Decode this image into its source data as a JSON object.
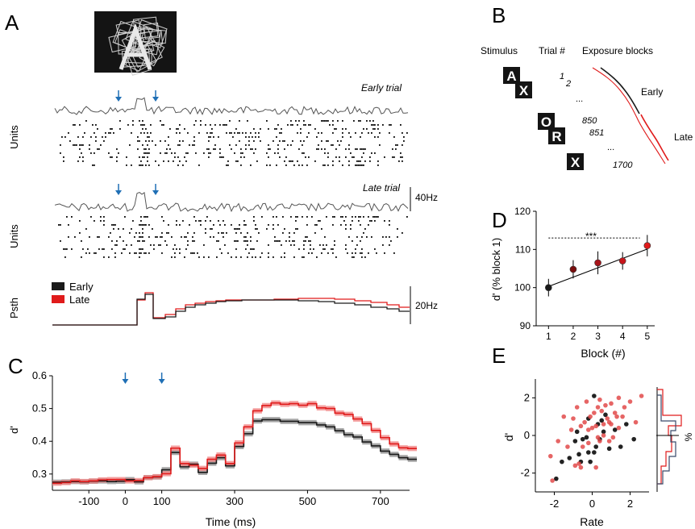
{
  "panels": {
    "a": "A",
    "b": "B",
    "c": "C",
    "d": "D",
    "e": "E"
  },
  "panelA": {
    "early_label": "Early trial",
    "late_label": "Late trial",
    "units_label": "Units",
    "psth_label": "Psth",
    "scale_40": "40Hz",
    "scale_20": "20Hz",
    "legend": [
      {
        "name": "Early",
        "color": "#1a1a1a"
      },
      {
        "name": "Late",
        "color": "#e01b1b"
      }
    ]
  },
  "panelB": {
    "headers": [
      "Stimulus",
      "Trial #",
      "Exposure blocks"
    ],
    "letters": [
      "A",
      "X",
      "O",
      "R",
      "X"
    ],
    "trials": [
      "1",
      "2",
      "...",
      "850",
      "851",
      "...",
      "1700"
    ],
    "early": "Early",
    "late": "Late"
  },
  "colors": {
    "early": "#1a1a1a",
    "late": "#e01b1b",
    "late_band": "#f08080",
    "arrow": "#1f6fb5"
  },
  "chart_data": [
    {
      "id": "C",
      "type": "line",
      "xlabel": "Time (ms)",
      "ylabel": "d'",
      "xlim": [
        -200,
        780
      ],
      "ylim": [
        0.27,
        0.6
      ],
      "xticks": [
        -100,
        0,
        100,
        300,
        500,
        700
      ],
      "yticks": [
        0.3,
        0.4,
        0.5,
        0.6
      ],
      "stimulus_markers_ms": [
        0,
        100
      ],
      "series": [
        {
          "name": "Early",
          "x": [
            -200,
            -175,
            -150,
            -125,
            -100,
            -75,
            -50,
            -25,
            0,
            25,
            50,
            75,
            100,
            125,
            150,
            175,
            200,
            225,
            250,
            275,
            300,
            325,
            350,
            375,
            400,
            425,
            450,
            475,
            500,
            525,
            550,
            575,
            600,
            625,
            650,
            675,
            700,
            725,
            750,
            775
          ],
          "y": [
            0.275,
            0.276,
            0.277,
            0.276,
            0.278,
            0.279,
            0.277,
            0.278,
            0.283,
            0.276,
            0.289,
            0.291,
            0.313,
            0.366,
            0.322,
            0.33,
            0.305,
            0.333,
            0.35,
            0.325,
            0.384,
            0.423,
            0.462,
            0.466,
            0.466,
            0.461,
            0.461,
            0.457,
            0.457,
            0.45,
            0.444,
            0.432,
            0.42,
            0.413,
            0.398,
            0.386,
            0.37,
            0.36,
            0.35,
            0.345
          ]
        },
        {
          "name": "Late",
          "x": [
            -200,
            -175,
            -150,
            -125,
            -100,
            -75,
            -50,
            -25,
            0,
            25,
            50,
            75,
            100,
            125,
            150,
            175,
            200,
            225,
            250,
            275,
            300,
            325,
            350,
            375,
            400,
            425,
            450,
            475,
            500,
            525,
            550,
            575,
            600,
            625,
            650,
            675,
            700,
            725,
            750,
            775
          ],
          "y": [
            0.272,
            0.274,
            0.279,
            0.277,
            0.279,
            0.282,
            0.283,
            0.283,
            0.279,
            0.28,
            0.289,
            0.292,
            0.301,
            0.379,
            0.332,
            0.327,
            0.317,
            0.345,
            0.358,
            0.332,
            0.395,
            0.444,
            0.493,
            0.509,
            0.517,
            0.513,
            0.515,
            0.51,
            0.515,
            0.502,
            0.5,
            0.486,
            0.482,
            0.468,
            0.454,
            0.433,
            0.411,
            0.392,
            0.38,
            0.378
          ]
        }
      ]
    },
    {
      "id": "D",
      "type": "scatter",
      "xlabel": "Block (#)",
      "ylabel": "d' (% block 1)",
      "xlim": [
        0.5,
        5.3
      ],
      "ylim": [
        90,
        120
      ],
      "xticks": [
        1,
        2,
        3,
        4,
        5
      ],
      "yticks": [
        90,
        100,
        110,
        120
      ],
      "significance": "***",
      "x": [
        1,
        2,
        3,
        4,
        5
      ],
      "y": [
        100,
        104.8,
        106.5,
        107,
        111
      ],
      "err": [
        2.3,
        2.4,
        3,
        2.3,
        2.8
      ],
      "colors": [
        "#1a1a1a",
        "#7a0d0d",
        "#a8141a",
        "#c8161b",
        "#e01b1b"
      ]
    },
    {
      "id": "E",
      "type": "scatter",
      "xlabel": "Rate",
      "ylabel": "d'",
      "xlim": [
        -3,
        3
      ],
      "ylim": [
        -3,
        3
      ],
      "xticks": [
        -2,
        0,
        2
      ],
      "yticks": [
        -2,
        0,
        2
      ],
      "side_label": "%",
      "series": [
        {
          "name": "Early",
          "points": [
            [
              -0.6,
              -1.4
            ],
            [
              -1.2,
              -1.2
            ],
            [
              -0.9,
              -0.3
            ],
            [
              0.1,
              -0.9
            ],
            [
              0.4,
              -0.2
            ],
            [
              -0.2,
              0.9
            ],
            [
              0.9,
              -0.7
            ],
            [
              1.2,
              0.3
            ],
            [
              -1.6,
              -1.4
            ],
            [
              -0.5,
              -0.2
            ],
            [
              0.3,
              0.6
            ],
            [
              0.2,
              -0.6
            ],
            [
              -0.2,
              -0.9
            ],
            [
              -1.9,
              -2.3
            ],
            [
              1.8,
              0.6
            ],
            [
              0.7,
              1.1
            ],
            [
              -0.3,
              -0.1
            ],
            [
              -0.8,
              0.2
            ],
            [
              2.2,
              -0.2
            ],
            [
              0.6,
              0.2
            ],
            [
              -0.1,
              -1.4
            ],
            [
              1.5,
              -0.6
            ],
            [
              0.1,
              2.1
            ],
            [
              -0.7,
              -1.0
            ],
            [
              0.5,
              0.8
            ]
          ]
        },
        {
          "name": "Late",
          "points": [
            [
              -2.2,
              -1.1
            ],
            [
              -0.8,
              1.5
            ],
            [
              0.1,
              1.2
            ],
            [
              0.7,
              1.6
            ],
            [
              1.2,
              1.2
            ],
            [
              1.4,
              0.4
            ],
            [
              -1.0,
              0.9
            ],
            [
              -0.2,
              0.3
            ],
            [
              0.3,
              -0.1
            ],
            [
              0.9,
              -0.3
            ],
            [
              -0.6,
              -1.7
            ],
            [
              -1.5,
              1.0
            ],
            [
              1.0,
              1.7
            ],
            [
              2.6,
              2.1
            ],
            [
              -0.4,
              0.7
            ],
            [
              0.2,
              0.5
            ],
            [
              0.6,
              0.6
            ],
            [
              -1.3,
              -0.6
            ],
            [
              -0.9,
              -1.6
            ],
            [
              1.6,
              1.0
            ],
            [
              2.0,
              1.8
            ],
            [
              0.4,
              1.9
            ],
            [
              -0.1,
              1.0
            ],
            [
              0.8,
              0.9
            ],
            [
              1.3,
              1.0
            ],
            [
              -1.8,
              -0.3
            ],
            [
              -0.5,
              -0.6
            ],
            [
              0.0,
              0.4
            ],
            [
              1.1,
              -0.1
            ],
            [
              -0.7,
              -1.5
            ],
            [
              1.7,
              1.5
            ],
            [
              0.5,
              1.3
            ],
            [
              -0.3,
              1.8
            ],
            [
              0.9,
              0.7
            ],
            [
              -2.1,
              -2.4
            ],
            [
              0.2,
              -1.7
            ],
            [
              1.4,
              2.0
            ],
            [
              -1.1,
              0.3
            ],
            [
              0.6,
              0.0
            ],
            [
              -0.2,
              -0.4
            ],
            [
              0.4,
              -0.3
            ],
            [
              1.0,
              0.6
            ],
            [
              -0.6,
              0.5
            ],
            [
              0.3,
              1.5
            ],
            [
              2.3,
              0.7
            ]
          ]
        }
      ]
    }
  ]
}
